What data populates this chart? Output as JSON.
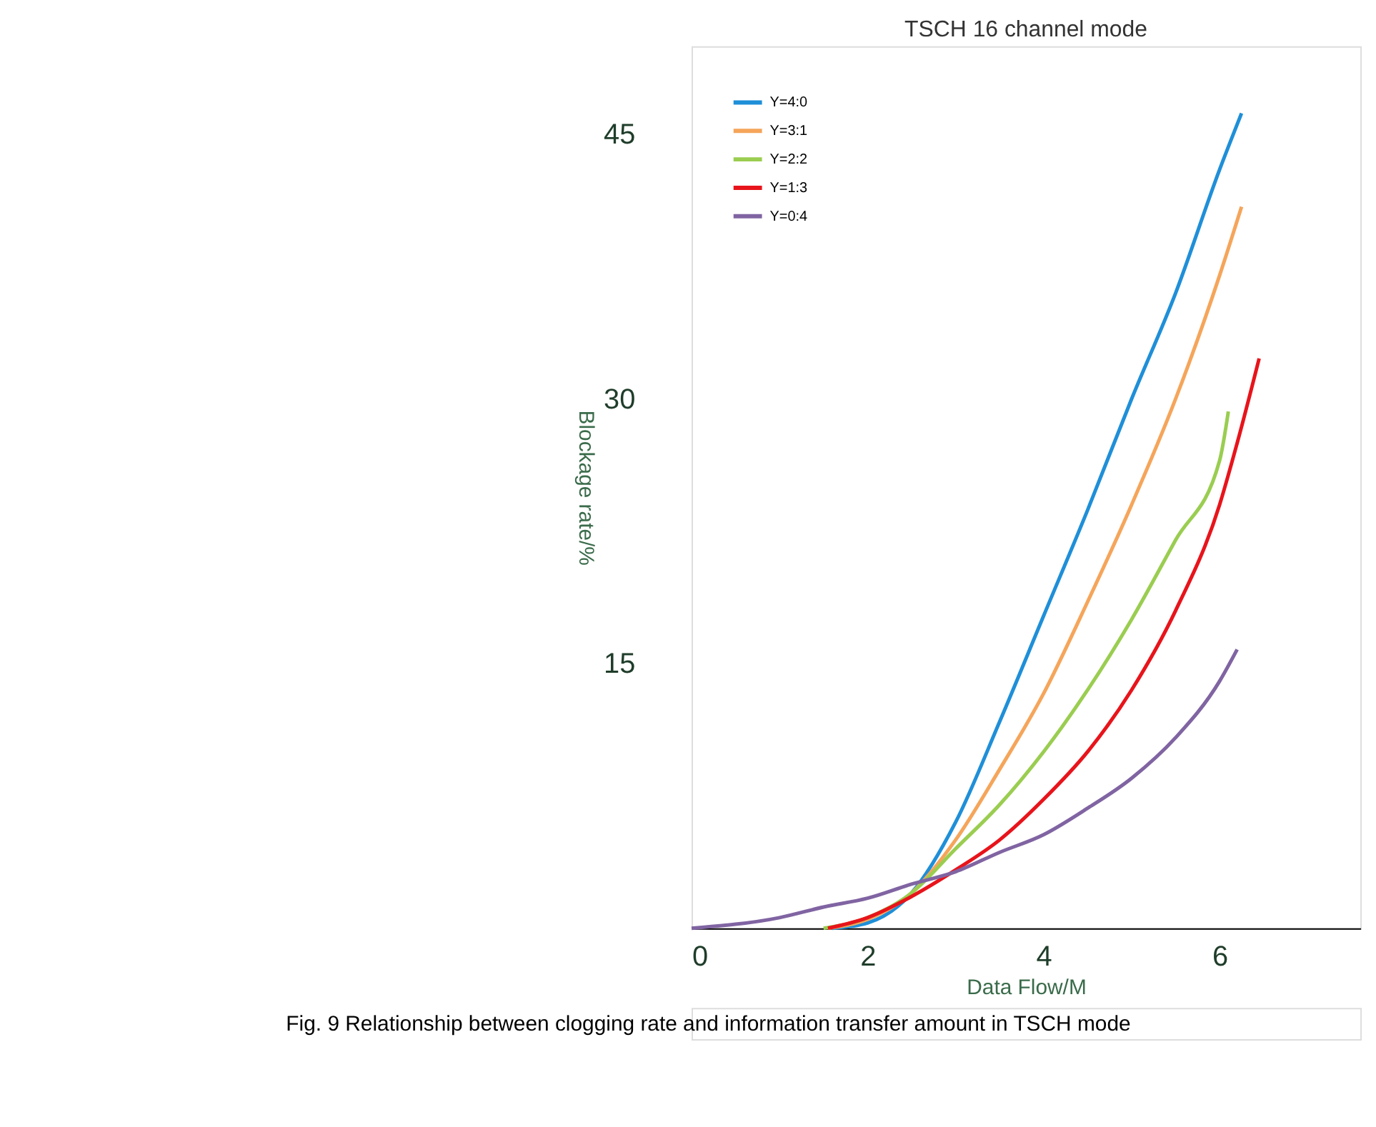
{
  "chart_data": {
    "type": "line",
    "title": "TSCH 16 channel mode",
    "xlabel": "Data Flow/M",
    "ylabel": "Blockage rate/%",
    "xlim": [
      0,
      7.6
    ],
    "xticks": [
      0,
      2,
      4,
      6
    ],
    "ylim": [
      0,
      50
    ],
    "yticks": [
      15,
      30,
      45
    ],
    "grid": false,
    "legend": "top left",
    "line_style": "solid",
    "marker": "none",
    "series": [
      {
        "name": "Y=4:0",
        "color": "#1f8fd8",
        "x": [
          1.6,
          2,
          2.5,
          3,
          3.5,
          4,
          4.5,
          5,
          5.5,
          6,
          6.25
        ],
        "values": [
          0,
          0.3,
          2,
          6,
          11.7,
          17.7,
          23.7,
          30,
          36,
          43,
          46.2
        ]
      },
      {
        "name": "Y=3:1",
        "color": "#f5a55a",
        "x": [
          1.55,
          2,
          2.5,
          3,
          3.5,
          4,
          4.5,
          5,
          5.5,
          6,
          6.25
        ],
        "values": [
          0,
          0.5,
          2,
          5,
          9,
          13.3,
          18.5,
          24,
          30,
          37,
          40.9
        ]
      },
      {
        "name": "Y=2:2",
        "color": "#9acd50",
        "x": [
          1.5,
          2,
          2.5,
          3,
          3.5,
          4,
          4.5,
          5,
          5.5,
          6,
          6.1
        ],
        "values": [
          0,
          0.6,
          2,
          4.5,
          7,
          10,
          13.5,
          17.5,
          22,
          26.5,
          29.3
        ]
      },
      {
        "name": "Y=1:3",
        "color": "#e8141b",
        "x": [
          1.55,
          2,
          2.5,
          3,
          3.5,
          4,
          4.5,
          5,
          5.5,
          6,
          6.2,
          6.45
        ],
        "values": [
          0,
          0.6,
          1.8,
          3.3,
          5,
          7.3,
          10,
          13.5,
          18,
          24,
          27.5,
          32.3
        ]
      },
      {
        "name": "Y=0:4",
        "color": "#8064a2",
        "x": [
          0,
          1,
          1.5,
          2,
          2.5,
          3,
          3.5,
          4,
          4.5,
          5,
          5.5,
          6,
          6.2
        ],
        "values": [
          0,
          0.6,
          1.2,
          1.7,
          2.5,
          3.2,
          4.3,
          5.3,
          6.8,
          8.5,
          10.8,
          14,
          15.8
        ]
      }
    ],
    "annotations": [
      "Fig. 9 Relationship between clogging rate and information transfer amount in TSCH mode"
    ]
  }
}
